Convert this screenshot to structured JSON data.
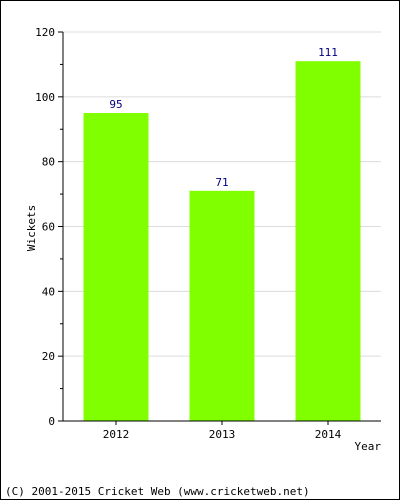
{
  "chart_data": {
    "type": "bar",
    "title": "",
    "xlabel": "Year",
    "ylabel": "Wickets",
    "categories": [
      "2012",
      "2013",
      "2014"
    ],
    "values": [
      95,
      71,
      111
    ],
    "data_labels": [
      "95",
      "71",
      "111"
    ],
    "ylim": [
      0,
      120
    ],
    "y_ticks": [
      0,
      20,
      40,
      60,
      80,
      100,
      120
    ],
    "y_tick_labels": [
      "0",
      "20",
      "40",
      "60",
      "80",
      "100",
      "120"
    ],
    "grid": true,
    "legend": "none",
    "bar_color": "#80ff00",
    "label_color": "#000080"
  },
  "footer": {
    "copyright": "(C) 2001-2015 Cricket Web (www.cricketweb.net)"
  }
}
